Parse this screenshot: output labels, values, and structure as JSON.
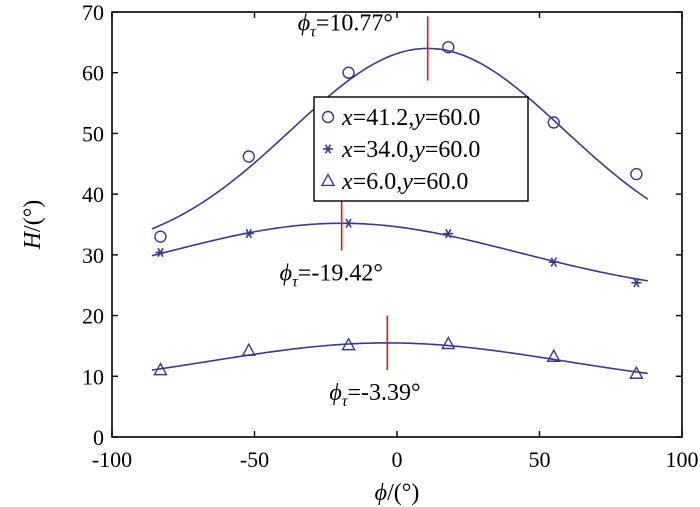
{
  "chart_data": {
    "type": "line",
    "title": "",
    "xlabel_symbol": "ϕ",
    "xlabel_unit": "/(°)",
    "ylabel_symbol": "H",
    "ylabel_unit": "/(°)",
    "xlim": [
      -100,
      100
    ],
    "ylim": [
      0,
      70
    ],
    "xticks": [
      -100,
      -50,
      0,
      50,
      100
    ],
    "yticks": [
      0,
      10,
      20,
      30,
      40,
      50,
      60,
      70
    ],
    "grid": false,
    "legend_position": "center",
    "series": [
      {
        "name": "x=41.2,y=60.0",
        "name_parts": [
          "x",
          "=41.2,",
          "y",
          "=60.0"
        ],
        "marker": "circle",
        "color": "#3a3a8c",
        "points": [
          [
            -83,
            33.0
          ],
          [
            -52,
            46.2
          ],
          [
            -17,
            60.0
          ],
          [
            18,
            64.2
          ],
          [
            55,
            51.8
          ],
          [
            84,
            43.3
          ]
        ],
        "fit": {
          "amplitude": 34.2,
          "baseline": 29.8,
          "center": 10.77,
          "width": 48
        },
        "fit_range": [
          -86,
          88
        ],
        "peak": {
          "x": 10.77,
          "label_symbol": "ϕ",
          "label_subscript": "τ",
          "label_text": "=10.77°"
        }
      },
      {
        "name": "x=34.0,y=60.0",
        "name_parts": [
          "x",
          "=34.0,",
          "y",
          "=60.0"
        ],
        "marker": "asterisk",
        "color": "#3a3a8c",
        "points": [
          [
            -83,
            30.4
          ],
          [
            -52,
            33.5
          ],
          [
            -17,
            35.2
          ],
          [
            18,
            33.5
          ],
          [
            55,
            28.8
          ],
          [
            84,
            25.4
          ]
        ],
        "fit": {
          "amplitude": 12.2,
          "baseline": 23.0,
          "center": -19.42,
          "width": 62
        },
        "fit_range": [
          -86,
          88
        ],
        "peak": {
          "x": -19.42,
          "label_symbol": "ϕ",
          "label_subscript": "τ",
          "label_text": "=-19.42°"
        }
      },
      {
        "name": "x=6.0,y=60.0",
        "name_parts": [
          "x",
          "=6.0,",
          "y",
          "=60.0"
        ],
        "marker": "triangle",
        "color": "#3a3a8c",
        "points": [
          [
            -83,
            11.0
          ],
          [
            -52,
            14.2
          ],
          [
            -17,
            15.1
          ],
          [
            18,
            15.3
          ],
          [
            55,
            13.2
          ],
          [
            84,
            10.4
          ]
        ],
        "fit": {
          "amplitude": 7.6,
          "baseline": 7.9,
          "center": -3.39,
          "width": 62
        },
        "fit_range": [
          -86,
          88
        ],
        "peak": {
          "x": -3.39,
          "label_symbol": "ϕ",
          "label_subscript": "τ",
          "label_text": "=-3.39°"
        }
      }
    ]
  }
}
